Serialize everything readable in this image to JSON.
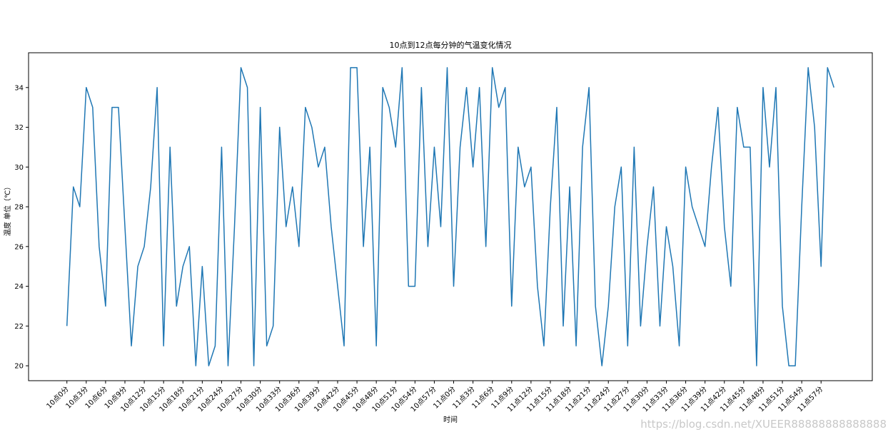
{
  "chart_data": {
    "type": "line",
    "title": "10点到12点每分钟的气温变化情况",
    "xlabel": "时间",
    "ylabel": "温度 单位（℃）",
    "watermark": "https://blog.csdn.net/XUEER88888888888888",
    "categories": [
      "10点0分",
      null,
      null,
      "10点3分",
      null,
      null,
      "10点6分",
      null,
      null,
      "10点9分",
      null,
      null,
      "10点12分",
      null,
      null,
      "10点15分",
      null,
      null,
      "10点18分",
      null,
      null,
      "10点21分",
      null,
      null,
      "10点24分",
      null,
      null,
      "10点27分",
      null,
      null,
      "10点30分",
      null,
      null,
      "10点33分",
      null,
      null,
      "10点36分",
      null,
      null,
      "10点39分",
      null,
      null,
      "10点42分",
      null,
      null,
      "10点45分",
      null,
      null,
      "10点48分",
      null,
      null,
      "10点51分",
      null,
      null,
      "10点54分",
      null,
      null,
      "10点57分",
      null,
      null,
      "11点0分",
      null,
      null,
      "11点3分",
      null,
      null,
      "11点6分",
      null,
      null,
      "11点9分",
      null,
      null,
      "11点12分",
      null,
      null,
      "11点15分",
      null,
      null,
      "11点18分",
      null,
      null,
      "11点21分",
      null,
      null,
      "11点24分",
      null,
      null,
      "11点27分",
      null,
      null,
      "11点30分",
      null,
      null,
      "11点33分",
      null,
      null,
      "11点36分",
      null,
      null,
      "11点39分",
      null,
      null,
      "11点42分",
      null,
      null,
      "11点45分",
      null,
      null,
      "11点48分",
      null,
      null,
      "11点51分",
      null,
      null,
      "11点54分",
      null,
      null,
      "11点57分",
      null,
      null
    ],
    "series": [
      {
        "color": "#1f77b4",
        "values": [
          22,
          29,
          28,
          34,
          33,
          26,
          23,
          33,
          33,
          27,
          21,
          25,
          26,
          29,
          34,
          21,
          31,
          23,
          25,
          26,
          20,
          25,
          20,
          21,
          31,
          20,
          27,
          35,
          34,
          20,
          33,
          21,
          22,
          32,
          27,
          29,
          26,
          33,
          32,
          30,
          31,
          27,
          24,
          21,
          35,
          35,
          26,
          31,
          21,
          34,
          33,
          31,
          35,
          24,
          24,
          34,
          26,
          31,
          27,
          35,
          24,
          31,
          34,
          30,
          34,
          26,
          35,
          33,
          34,
          23,
          31,
          29,
          30,
          24,
          21,
          28,
          33,
          22,
          29,
          21,
          31,
          34,
          23,
          20,
          23,
          28,
          30,
          21,
          31,
          22,
          26,
          29,
          22,
          27,
          25,
          21,
          30,
          28,
          27,
          26,
          30,
          33,
          27,
          24,
          33,
          31,
          31,
          20,
          34,
          30,
          34,
          23,
          20,
          20,
          28,
          35,
          32,
          25,
          35,
          34
        ]
      }
    ],
    "xlim": [
      -5.95,
      124.95
    ],
    "ylim": [
      19.25,
      35.75
    ],
    "yticks": [
      20,
      22,
      24,
      26,
      28,
      30,
      32,
      34
    ]
  }
}
